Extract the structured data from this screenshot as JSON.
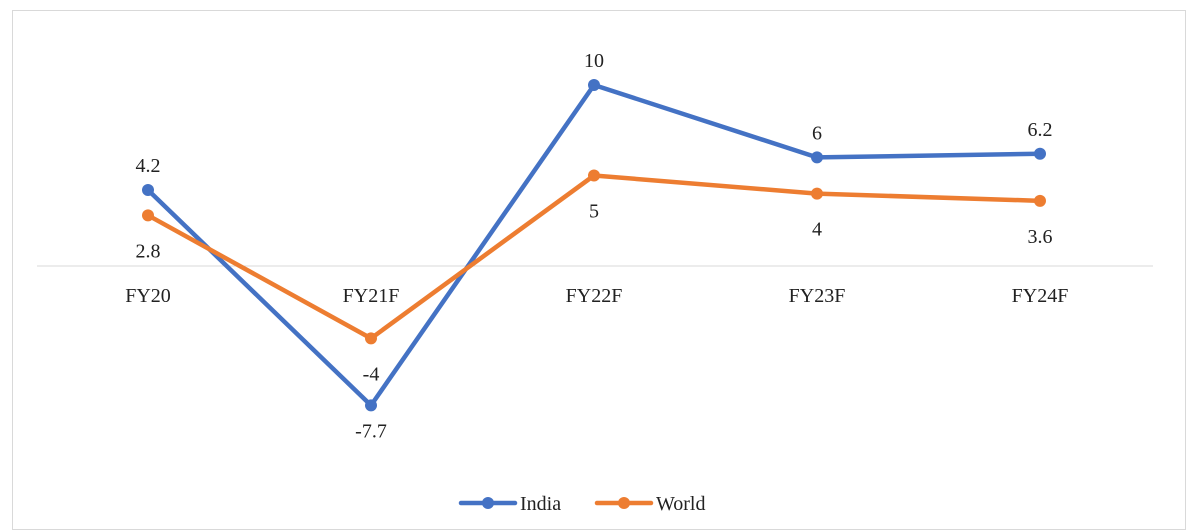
{
  "chart_data": {
    "type": "line",
    "categories": [
      "FY20",
      "FY21F",
      "FY22F",
      "FY23F",
      "FY24F"
    ],
    "series": [
      {
        "name": "India",
        "values": [
          4.2,
          -7.7,
          10,
          6,
          6.2
        ],
        "color": "#4472c4"
      },
      {
        "name": "World",
        "values": [
          2.8,
          -4,
          5,
          4,
          3.6
        ],
        "color": "#ed7d31"
      }
    ],
    "data_labels": {
      "India": [
        "4.2",
        "-7.7",
        "10",
        "6",
        "6.2"
      ],
      "World": [
        "2.8",
        "-4",
        "5",
        "4",
        "3.6"
      ]
    },
    "ylim": [
      -9,
      11
    ],
    "grid": false,
    "legend_position": "bottom"
  }
}
